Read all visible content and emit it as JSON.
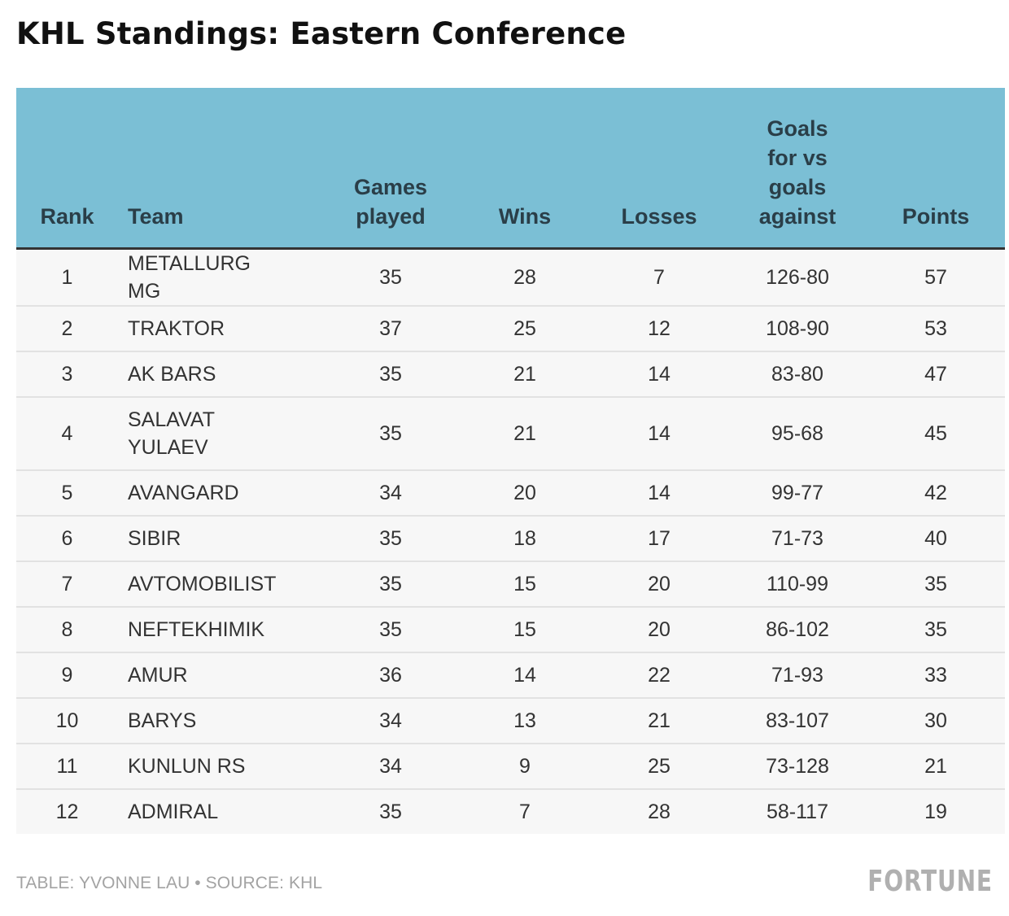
{
  "title": "KHL Standings: Eastern Conference",
  "footer": {
    "credit": "TABLE: YVONNE LAU • SOURCE: KHL",
    "logo": "FORTUNE"
  },
  "colors": {
    "header_bg": "#7bbfd5",
    "row_bg": "#f7f7f7",
    "header_text": "#2a3e48"
  },
  "chart_data": {
    "type": "table",
    "title": "KHL Standings: Eastern Conference",
    "columns": [
      "Rank",
      "Team",
      "Games played",
      "Wins",
      "Losses",
      "Goals for vs goals against",
      "Points"
    ],
    "rows": [
      {
        "rank": "1",
        "team": "METALLURG MG",
        "games": "35",
        "wins": "28",
        "losses": "7",
        "goals": "126-80",
        "points": "57"
      },
      {
        "rank": "2",
        "team": "TRAKTOR",
        "games": "37",
        "wins": "25",
        "losses": "12",
        "goals": "108-90",
        "points": "53"
      },
      {
        "rank": "3",
        "team": "AK BARS",
        "games": "35",
        "wins": "21",
        "losses": "14",
        "goals": "83-80",
        "points": "47"
      },
      {
        "rank": "4",
        "team": "SALAVAT YULAEV",
        "games": "35",
        "wins": "21",
        "losses": "14",
        "goals": "95-68",
        "points": "45"
      },
      {
        "rank": "5",
        "team": "AVANGARD",
        "games": "34",
        "wins": "20",
        "losses": "14",
        "goals": "99-77",
        "points": "42"
      },
      {
        "rank": "6",
        "team": "SIBIR",
        "games": "35",
        "wins": "18",
        "losses": "17",
        "goals": "71-73",
        "points": "40"
      },
      {
        "rank": "7",
        "team": "AVTOMOBILIST",
        "games": "35",
        "wins": "15",
        "losses": "20",
        "goals": "110-99",
        "points": "35"
      },
      {
        "rank": "8",
        "team": "NEFTEKHIMIK",
        "games": "35",
        "wins": "15",
        "losses": "20",
        "goals": "86-102",
        "points": "35"
      },
      {
        "rank": "9",
        "team": "AMUR",
        "games": "36",
        "wins": "14",
        "losses": "22",
        "goals": "71-93",
        "points": "33"
      },
      {
        "rank": "10",
        "team": "BARYS",
        "games": "34",
        "wins": "13",
        "losses": "21",
        "goals": "83-107",
        "points": "30"
      },
      {
        "rank": "11",
        "team": "KUNLUN RS",
        "games": "34",
        "wins": "9",
        "losses": "25",
        "goals": "73-128",
        "points": "21"
      },
      {
        "rank": "12",
        "team": "ADMIRAL",
        "games": "35",
        "wins": "7",
        "losses": "28",
        "goals": "58-117",
        "points": "19"
      }
    ]
  }
}
